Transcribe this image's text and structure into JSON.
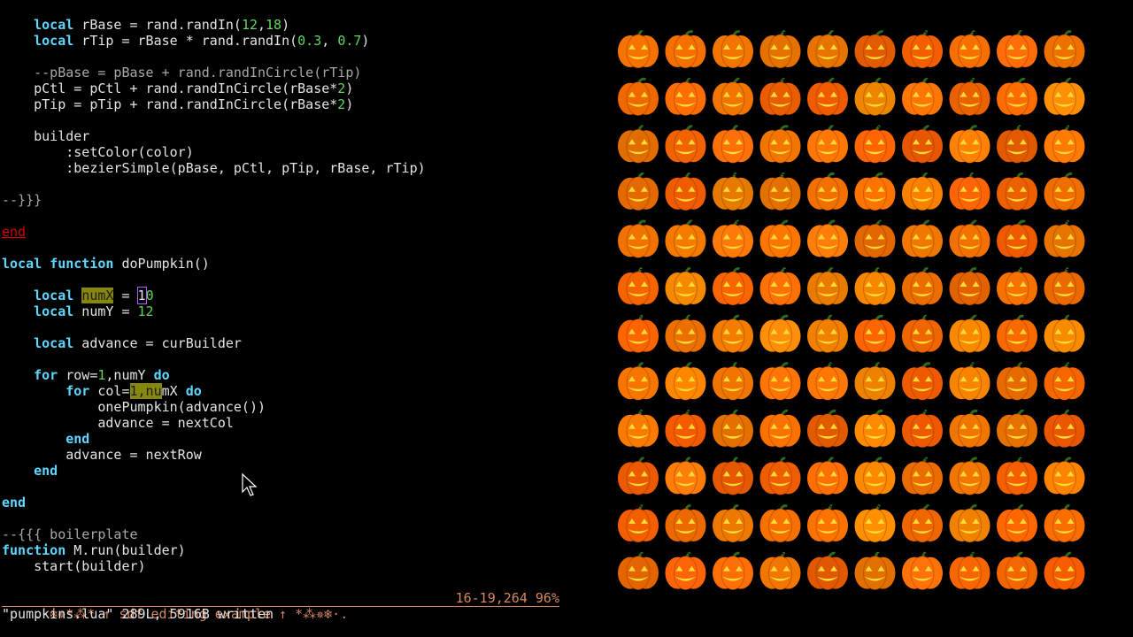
{
  "editor": {
    "lines": [
      "    local rBase = rand.randIn(12,18)",
      "    local rTip = rBase * rand.randIn(0.3, 0.7)",
      "",
      "    --pBase = pBase + rand.randInCircle(rTip)",
      "    pCtl = pCtl + rand.randInCircle(rBase*2)",
      "    pTip = pTip + rand.randInCircle(rBase*2)",
      "",
      "    builder",
      "        :setColor(color)",
      "        :bezierSimple(pBase, pCtl, pTip, rBase, rTip)",
      "",
      "--}}}",
      "",
      "end",
      "",
      "local function doPumpkin()",
      "",
      "    local numX = 10",
      "    local numY = 12",
      "",
      "    local advance = curBuilder",
      "",
      "    for row=1,numY do",
      "        for col=1,numX do",
      "            onePumpkin(advance())",
      "            advance = nextCol",
      "        end",
      "        advance = nextRow",
      "    end",
      "",
      "end",
      "",
      "--{{{ boilerplate",
      "function M.run(builder)",
      "    start(builder)"
    ],
    "status": {
      "title": ".·❄✵*⁂* ↑ sdf editing example ↑ *⁂✵❄·.",
      "position": "16-19,264 96%"
    },
    "message": "\"pumpkins.lua\" 289L, 5916B written"
  }
}
